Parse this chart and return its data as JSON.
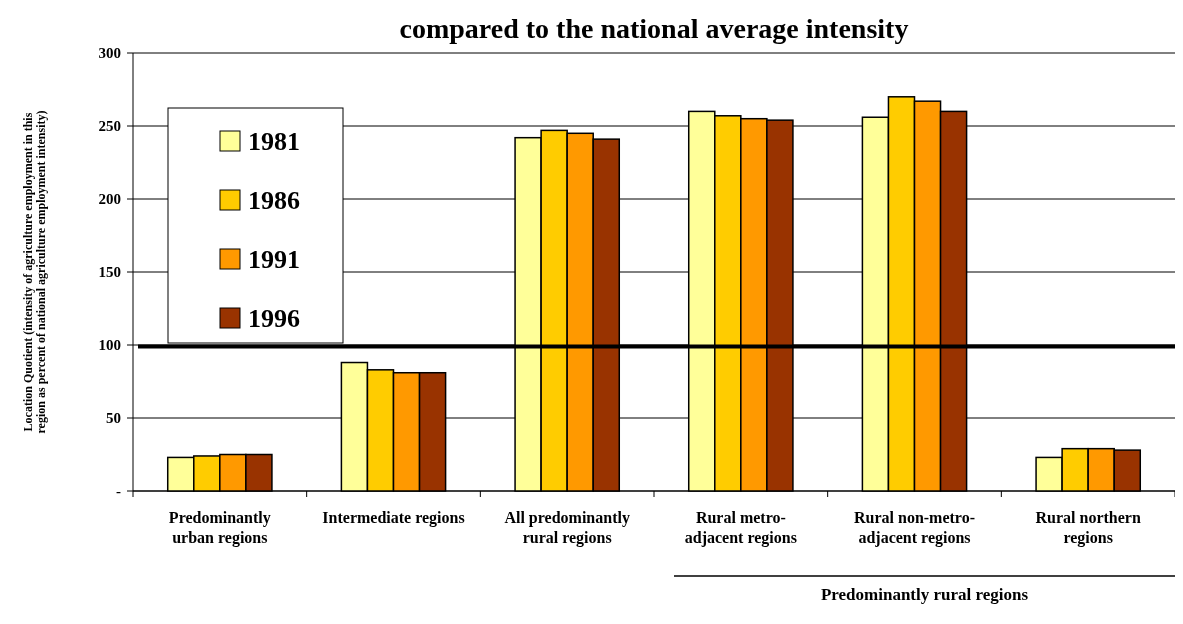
{
  "chart_data": {
    "type": "bar",
    "title": "compared to the national average intensity",
    "ylabel": "Location Quotient  (intensity of agriculture employment in this\nregion as percent of national agriculture employment intensity)",
    "categories": [
      "Predominantly urban regions",
      "Intermediate regions",
      "All predominantly rural regions",
      "Rural metro-adjacent regions",
      "Rural non-metro-adjacent regions",
      "Rural northern regions"
    ],
    "series": [
      {
        "name": "1981",
        "color": "#ffff99",
        "values": [
          23,
          88,
          242,
          260,
          256,
          23
        ]
      },
      {
        "name": "1986",
        "color": "#ffcc00",
        "values": [
          24,
          83,
          247,
          257,
          270,
          29
        ]
      },
      {
        "name": "1991",
        "color": "#ff9900",
        "values": [
          25,
          81,
          245,
          255,
          267,
          29
        ]
      },
      {
        "name": "1996",
        "color": "#993300",
        "values": [
          25,
          81,
          241,
          254,
          260,
          28
        ]
      }
    ],
    "ylim": [
      0,
      300
    ],
    "yticks": [
      {
        "value": 0,
        "label": "-"
      },
      50,
      100,
      150,
      200,
      250,
      300
    ],
    "grid": "y",
    "legend": "top left",
    "ref_lines": [
      {
        "axis": "y",
        "value": 99,
        "color": "#000000"
      }
    ],
    "annotations": [
      "Predominantly rural regions"
    ]
  }
}
